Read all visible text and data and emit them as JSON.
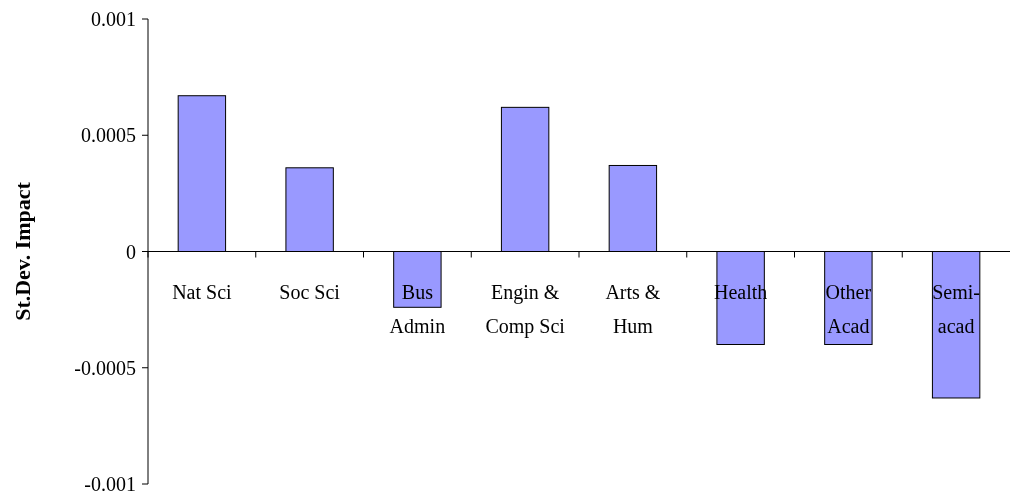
{
  "chart_data": {
    "type": "bar",
    "ylabel": "St.Dev. Impact",
    "categories": [
      "Nat Sci",
      "Soc Sci",
      "Bus\nAdmin",
      "Engin &\nComp Sci",
      "Arts &\nHum",
      "Health",
      "Other\nAcad",
      "Semi-\nacad"
    ],
    "values": [
      0.00067,
      0.00036,
      -0.00024,
      0.00062,
      0.00037,
      -0.0004,
      -0.0004,
      -0.00063
    ],
    "color": "#9999ff",
    "ylim": [
      -0.001,
      0.001
    ],
    "yticks": [
      -0.001,
      -0.0005,
      0,
      0.0005,
      0.001
    ],
    "grid": false
  }
}
